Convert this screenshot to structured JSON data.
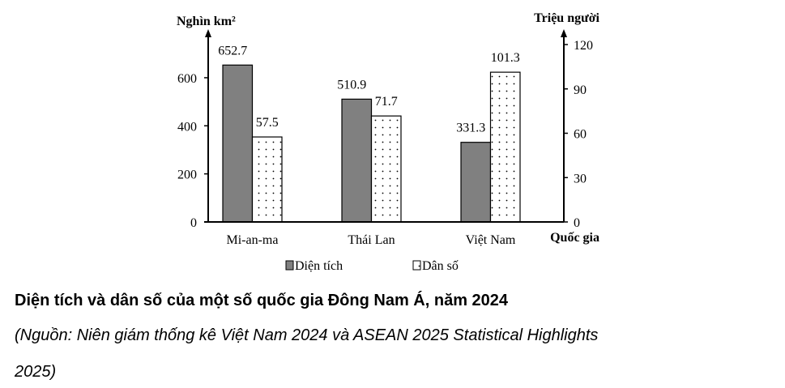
{
  "chart_data": {
    "type": "bar",
    "title": "Diện tích và dân số của một số quốc gia Đông Nam Á, năm 2024",
    "source_line1": "(Nguồn: Niên giám thống kê Việt Nam 2024 và  ASEAN 2025 Statistical Highlights",
    "source_line2": "2025)",
    "categories": [
      "Mi-an-ma",
      "Thái Lan",
      "Việt Nam"
    ],
    "xlabel": "Quốc gia",
    "ylabel_left": "Nghìn km²",
    "ylabel_right": "Triệu người",
    "yticks_left": [
      0,
      200,
      400,
      600
    ],
    "yticks_right": [
      0,
      30,
      60,
      90,
      120
    ],
    "ylim_left": [
      0,
      738
    ],
    "ylim_right": [
      0,
      120
    ],
    "grid": false,
    "legend_placement": "bottom",
    "series": [
      {
        "name": "Diện tích",
        "axis": "left",
        "values": [
          652.7,
          510.9,
          331.3
        ],
        "labels": [
          "652.7",
          "510.9",
          "331.3"
        ],
        "color": "#808080",
        "pattern": "solid"
      },
      {
        "name": "Dân số",
        "axis": "right",
        "values": [
          57.5,
          71.7,
          101.3
        ],
        "labels": [
          "57.5",
          "71.7",
          "101.3"
        ],
        "color": "#ffffff",
        "pattern": "dotted"
      }
    ]
  }
}
